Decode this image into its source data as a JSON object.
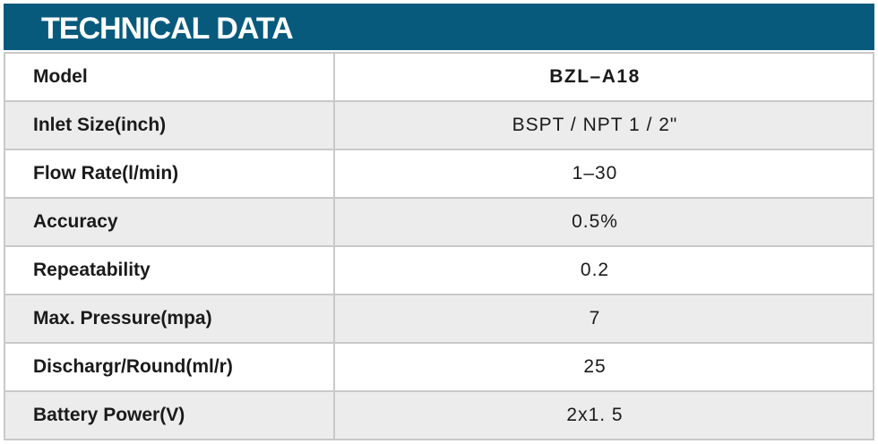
{
  "header": {
    "title": "TECHNICAL DATA",
    "background_color": "#075a7c",
    "text_color": "#ffffff"
  },
  "table": {
    "border_color": "#c9c9c9",
    "alt_row_color": "#ececec",
    "rows": [
      {
        "label": "Model",
        "value": "BZL–A18"
      },
      {
        "label": "Inlet Size(inch)",
        "value": "BSPT / NPT 1 / 2\""
      },
      {
        "label": "Flow Rate(l/min)",
        "value": "1–30"
      },
      {
        "label": "Accuracy",
        "value": "0.5%"
      },
      {
        "label": "Repeatability",
        "value": "0.2"
      },
      {
        "label": "Max. Pressure(mpa)",
        "value": "7"
      },
      {
        "label": "Dischargr/Round(ml/r)",
        "value": "25"
      },
      {
        "label": "Battery Power(V)",
        "value": "2x1. 5"
      }
    ]
  }
}
